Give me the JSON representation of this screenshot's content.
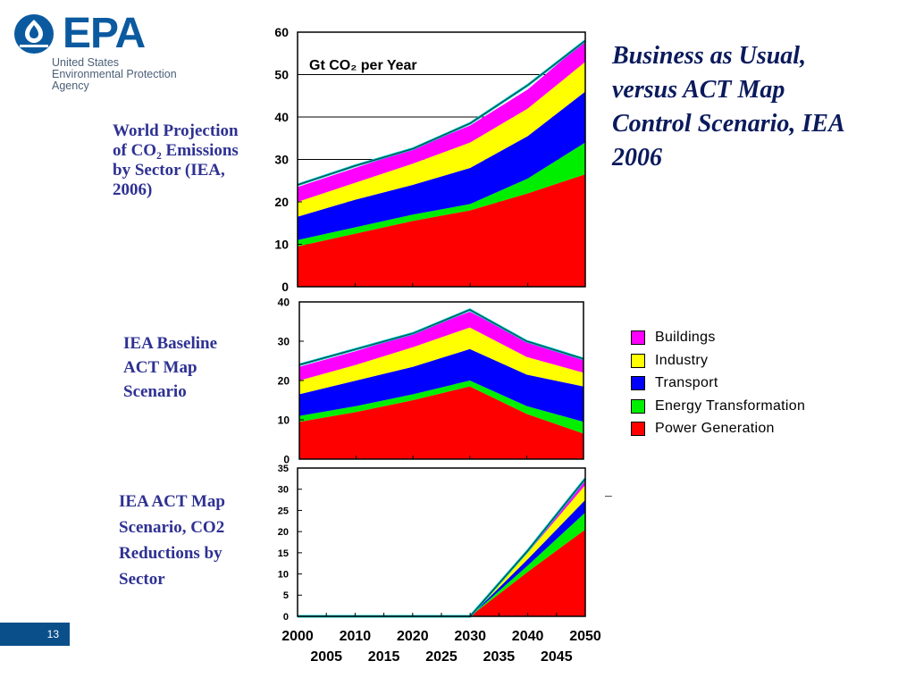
{
  "logo": {
    "wordmark": "EPA",
    "agency_lines": [
      "United States",
      "Environmental Protection",
      "Agency"
    ]
  },
  "slide": {
    "heading_lines": [
      "Business as Usual,",
      "versus ACT Map",
      "Control Scenario, IEA",
      "2006"
    ],
    "page_number": "13",
    "stray_mark": "–"
  },
  "labels": {
    "top": [
      "World Projection",
      "of CO₂ Emissions",
      "by Sector (IEA,",
      "2006)"
    ],
    "middle": [
      "IEA Baseline",
      "ACT Map",
      "Scenario"
    ],
    "bottom": [
      "IEA ACT Map",
      "Scenario, CO2",
      "Reductions by",
      "Sector"
    ]
  },
  "colors": {
    "buildings": "#ff00ff",
    "industry": "#ffff00",
    "transport": "#0000ff",
    "energy_transformation": "#00ee00",
    "power_generation": "#ff0000",
    "brand_blue": "#0b5aa0",
    "label_blue": "#2e3192"
  },
  "legend": [
    {
      "name": "Buildings",
      "color": "#ff00ff"
    },
    {
      "name": "Industry",
      "color": "#ffff00"
    },
    {
      "name": "Transport",
      "color": "#0000ff"
    },
    {
      "name": "Energy Transformation",
      "color": "#00ee00"
    },
    {
      "name": "Power Generation",
      "color": "#ff0000"
    }
  ],
  "chart_data": [
    {
      "type": "area",
      "stacked": true,
      "title": "",
      "annotation": "Gt CO₂ per Year",
      "x": [
        2000,
        2010,
        2020,
        2030,
        2040,
        2050
      ],
      "xlim": [
        2000,
        2050
      ],
      "ylim": [
        0,
        60
      ],
      "yticks": [
        0,
        10,
        20,
        30,
        40,
        50,
        60
      ],
      "grid": "horizontal",
      "series": [
        {
          "name": "Power Generation",
          "values": [
            9.5,
            12.5,
            15.5,
            18,
            22,
            26.5
          ]
        },
        {
          "name": "Energy Transformation",
          "values": [
            1.5,
            1.5,
            1.5,
            1.5,
            3.5,
            7.5
          ]
        },
        {
          "name": "Transport",
          "values": [
            5.5,
            6.5,
            7,
            8.5,
            10,
            12
          ]
        },
        {
          "name": "Industry",
          "values": [
            3.5,
            4,
            5,
            6,
            6.5,
            7
          ]
        },
        {
          "name": "Buildings",
          "values": [
            3.5,
            3.5,
            3.5,
            4,
            4.5,
            5
          ]
        }
      ],
      "total_outline": [
        24,
        28.5,
        32.5,
        38.5,
        47.5,
        58
      ]
    },
    {
      "type": "area",
      "stacked": true,
      "title": "",
      "x": [
        2000,
        2010,
        2020,
        2030,
        2040,
        2050
      ],
      "xlim": [
        2000,
        2050
      ],
      "ylim": [
        0,
        40
      ],
      "yticks": [
        0,
        10,
        20,
        30,
        40
      ],
      "grid": "none",
      "series": [
        {
          "name": "Power Generation",
          "values": [
            9.5,
            12,
            15,
            18.5,
            11.5,
            6.5
          ]
        },
        {
          "name": "Energy Transformation",
          "values": [
            1.5,
            1.5,
            1.5,
            1.5,
            2,
            3
          ]
        },
        {
          "name": "Transport",
          "values": [
            5.5,
            6.5,
            7,
            8,
            8,
            9
          ]
        },
        {
          "name": "Industry",
          "values": [
            3.5,
            4,
            5,
            5.5,
            4.5,
            3.5
          ]
        },
        {
          "name": "Buildings",
          "values": [
            3.5,
            3.5,
            3.5,
            4,
            4,
            3.5
          ]
        }
      ],
      "total_outline": [
        24,
        28,
        32,
        38,
        30,
        25.5
      ]
    },
    {
      "type": "area",
      "stacked": true,
      "title": "",
      "x": [
        2000,
        2010,
        2020,
        2030,
        2040,
        2050
      ],
      "xlim": [
        2000,
        2050
      ],
      "xticks_row1": [
        2000,
        2010,
        2020,
        2030,
        2040,
        2050
      ],
      "xticks_row2": [
        2005,
        2015,
        2025,
        2035,
        2045
      ],
      "ylim": [
        0,
        35
      ],
      "yticks": [
        0,
        5,
        10,
        15,
        20,
        25,
        30,
        35
      ],
      "grid": "none",
      "series": [
        {
          "name": "Power Generation",
          "values": [
            0,
            0,
            0,
            0,
            10.5,
            20.5
          ]
        },
        {
          "name": "Energy Transformation",
          "values": [
            0,
            0,
            0,
            0,
            1.5,
            4
          ]
        },
        {
          "name": "Transport",
          "values": [
            0,
            0,
            0,
            0,
            1.5,
            3
          ]
        },
        {
          "name": "Industry",
          "values": [
            0,
            0,
            0,
            0,
            1.5,
            3.5
          ]
        },
        {
          "name": "Buildings",
          "values": [
            0,
            0,
            0,
            0,
            0.5,
            1.5
          ]
        }
      ],
      "total_outline": [
        0,
        0,
        0,
        0,
        15.5,
        32.5
      ]
    }
  ]
}
